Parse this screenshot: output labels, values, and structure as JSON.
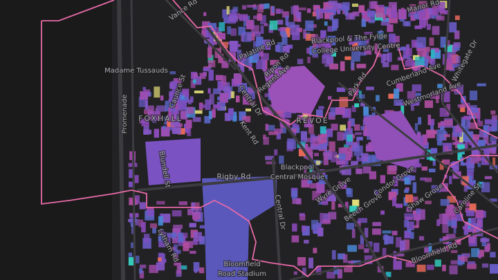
{
  "map": {
    "labels": [
      "Vance Rd",
      "Manor Rd",
      "Blackpool & The Fylde",
      "College University Centre",
      "Palatine Rd",
      "Ripon Rd",
      "Regent Ave",
      "Madame Tussauds",
      "Promenade",
      "Caunce St",
      "FOXHALL",
      "Central Dr",
      "Kent Rd",
      "REVOE",
      "Park Rd",
      "Cumberland Ave",
      "Westmorland Ave",
      "Whitegate Dr",
      "Blundell St",
      "Rigby Rd",
      "Blackpool",
      "Central Mosque",
      "Wyre Grove",
      "Beech Grove",
      "Condor Grove",
      "Shaw Grove",
      "Caroline St",
      "Central Dr",
      "Lytham Rd",
      "Bloomfield",
      "Road Stadium",
      "Bloomfield Rd"
    ]
  }
}
